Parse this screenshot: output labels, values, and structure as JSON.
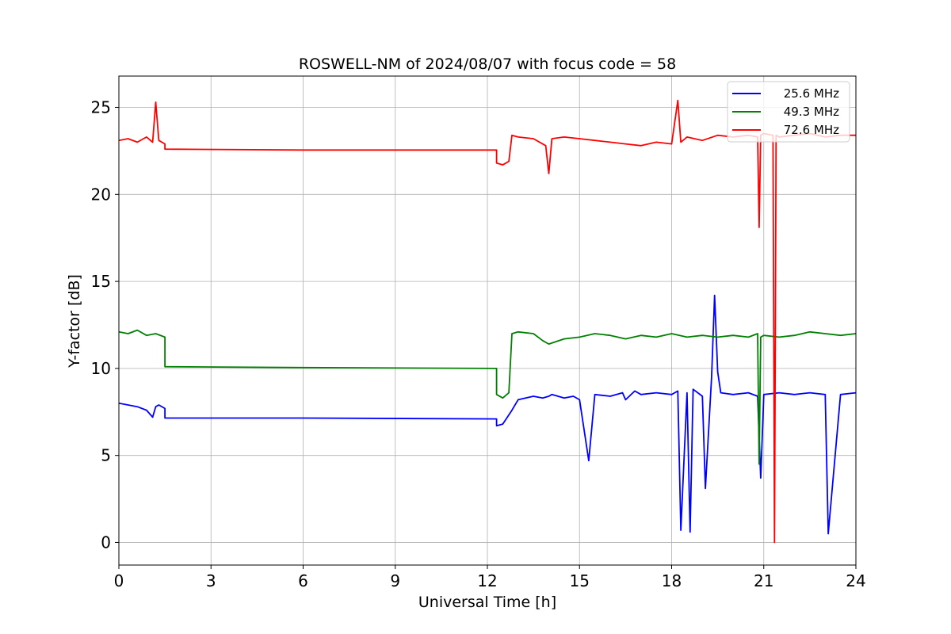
{
  "chart_data": {
    "type": "line",
    "title": "ROSWELL-NM of 2024/08/07 with focus code = 58",
    "xlabel": "Universal Time [h]",
    "ylabel": "Y-factor [dB]",
    "xlim": [
      0,
      24
    ],
    "ylim": [
      -1.3,
      26.8
    ],
    "xticks": [
      0,
      3,
      6,
      9,
      12,
      15,
      18,
      21,
      24
    ],
    "xtick_labels": [
      "0",
      "3",
      "6",
      "9",
      "12",
      "15",
      "18",
      "21",
      "24"
    ],
    "yticks": [
      0,
      5,
      10,
      15,
      20,
      25
    ],
    "ytick_labels": [
      "0",
      "5",
      "10",
      "15",
      "20",
      "25"
    ],
    "grid": true,
    "legend_position": "upper-right",
    "series": [
      {
        "name": "25.6 MHz",
        "color": "#0000ff",
        "x": [
          0,
          0.3,
          0.6,
          0.9,
          1.1,
          1.2,
          1.3,
          1.5,
          1.5,
          6.0,
          12.3,
          12.3,
          12.5,
          12.8,
          13.0,
          13.5,
          13.8,
          14.0,
          14.1,
          14.5,
          14.8,
          15.0,
          15.3,
          15.5,
          16.0,
          16.4,
          16.5,
          16.8,
          17.0,
          17.5,
          18.0,
          18.2,
          18.3,
          18.5,
          18.6,
          18.7,
          19.0,
          19.1,
          19.3,
          19.4,
          19.5,
          19.6,
          20.0,
          20.5,
          20.8,
          20.9,
          21.0,
          21.5,
          22.0,
          22.5,
          23.0,
          23.1,
          23.5,
          24.0
        ],
        "y": [
          8.0,
          7.9,
          7.8,
          7.6,
          7.2,
          7.8,
          7.9,
          7.7,
          7.15,
          7.15,
          7.1,
          6.7,
          6.8,
          7.6,
          8.2,
          8.4,
          8.3,
          8.4,
          8.5,
          8.3,
          8.4,
          8.2,
          4.7,
          8.5,
          8.4,
          8.6,
          8.2,
          8.7,
          8.5,
          8.6,
          8.5,
          8.7,
          0.7,
          8.6,
          0.6,
          8.8,
          8.4,
          3.1,
          9.5,
          14.2,
          9.8,
          8.6,
          8.5,
          8.6,
          8.4,
          3.7,
          8.5,
          8.6,
          8.5,
          8.6,
          8.5,
          0.5,
          8.5,
          8.6
        ]
      },
      {
        "name": "49.3 MHz",
        "color": "#008000",
        "x": [
          0,
          0.3,
          0.6,
          0.9,
          1.2,
          1.5,
          1.5,
          6.0,
          12.3,
          12.3,
          12.5,
          12.7,
          12.8,
          13.0,
          13.5,
          13.8,
          14.0,
          14.5,
          15.0,
          15.5,
          16.0,
          16.5,
          17.0,
          17.5,
          18.0,
          18.5,
          19.0,
          19.5,
          20.0,
          20.5,
          20.8,
          20.85,
          20.9,
          21.0,
          21.5,
          22.0,
          22.5,
          23.0,
          23.5,
          24.0
        ],
        "y": [
          12.1,
          12.0,
          12.2,
          11.9,
          12.0,
          11.8,
          10.1,
          10.05,
          10.0,
          8.5,
          8.3,
          8.6,
          12.0,
          12.1,
          12.0,
          11.6,
          11.4,
          11.7,
          11.8,
          12.0,
          11.9,
          11.7,
          11.9,
          11.8,
          12.0,
          11.8,
          11.9,
          11.8,
          11.9,
          11.8,
          12.0,
          4.5,
          11.8,
          11.9,
          11.8,
          11.9,
          12.1,
          12.0,
          11.9,
          12.0
        ]
      },
      {
        "name": "72.6 MHz",
        "color": "#ff0000",
        "x": [
          0,
          0.3,
          0.6,
          0.9,
          1.1,
          1.2,
          1.3,
          1.5,
          1.5,
          6.0,
          12.3,
          12.3,
          12.5,
          12.7,
          12.8,
          13.0,
          13.5,
          13.9,
          14.0,
          14.1,
          14.5,
          15.0,
          15.5,
          16.0,
          16.5,
          17.0,
          17.5,
          18.0,
          18.2,
          18.3,
          18.5,
          19.0,
          19.5,
          20.0,
          20.5,
          20.8,
          20.85,
          20.9,
          21.0,
          21.3,
          21.35,
          21.4,
          21.5,
          22.0,
          22.5,
          23.0,
          23.5,
          24.0
        ],
        "y": [
          23.1,
          23.2,
          23.0,
          23.3,
          23.0,
          25.3,
          23.1,
          22.9,
          22.6,
          22.55,
          22.55,
          21.8,
          21.7,
          21.9,
          23.4,
          23.3,
          23.2,
          22.8,
          21.2,
          23.2,
          23.3,
          23.2,
          23.1,
          23.0,
          22.9,
          22.8,
          23.0,
          22.9,
          25.4,
          23.0,
          23.3,
          23.1,
          23.4,
          23.3,
          23.4,
          23.3,
          18.1,
          23.4,
          23.5,
          23.4,
          0.0,
          23.4,
          23.3,
          23.4,
          23.5,
          23.3,
          23.4,
          23.4
        ]
      }
    ]
  }
}
